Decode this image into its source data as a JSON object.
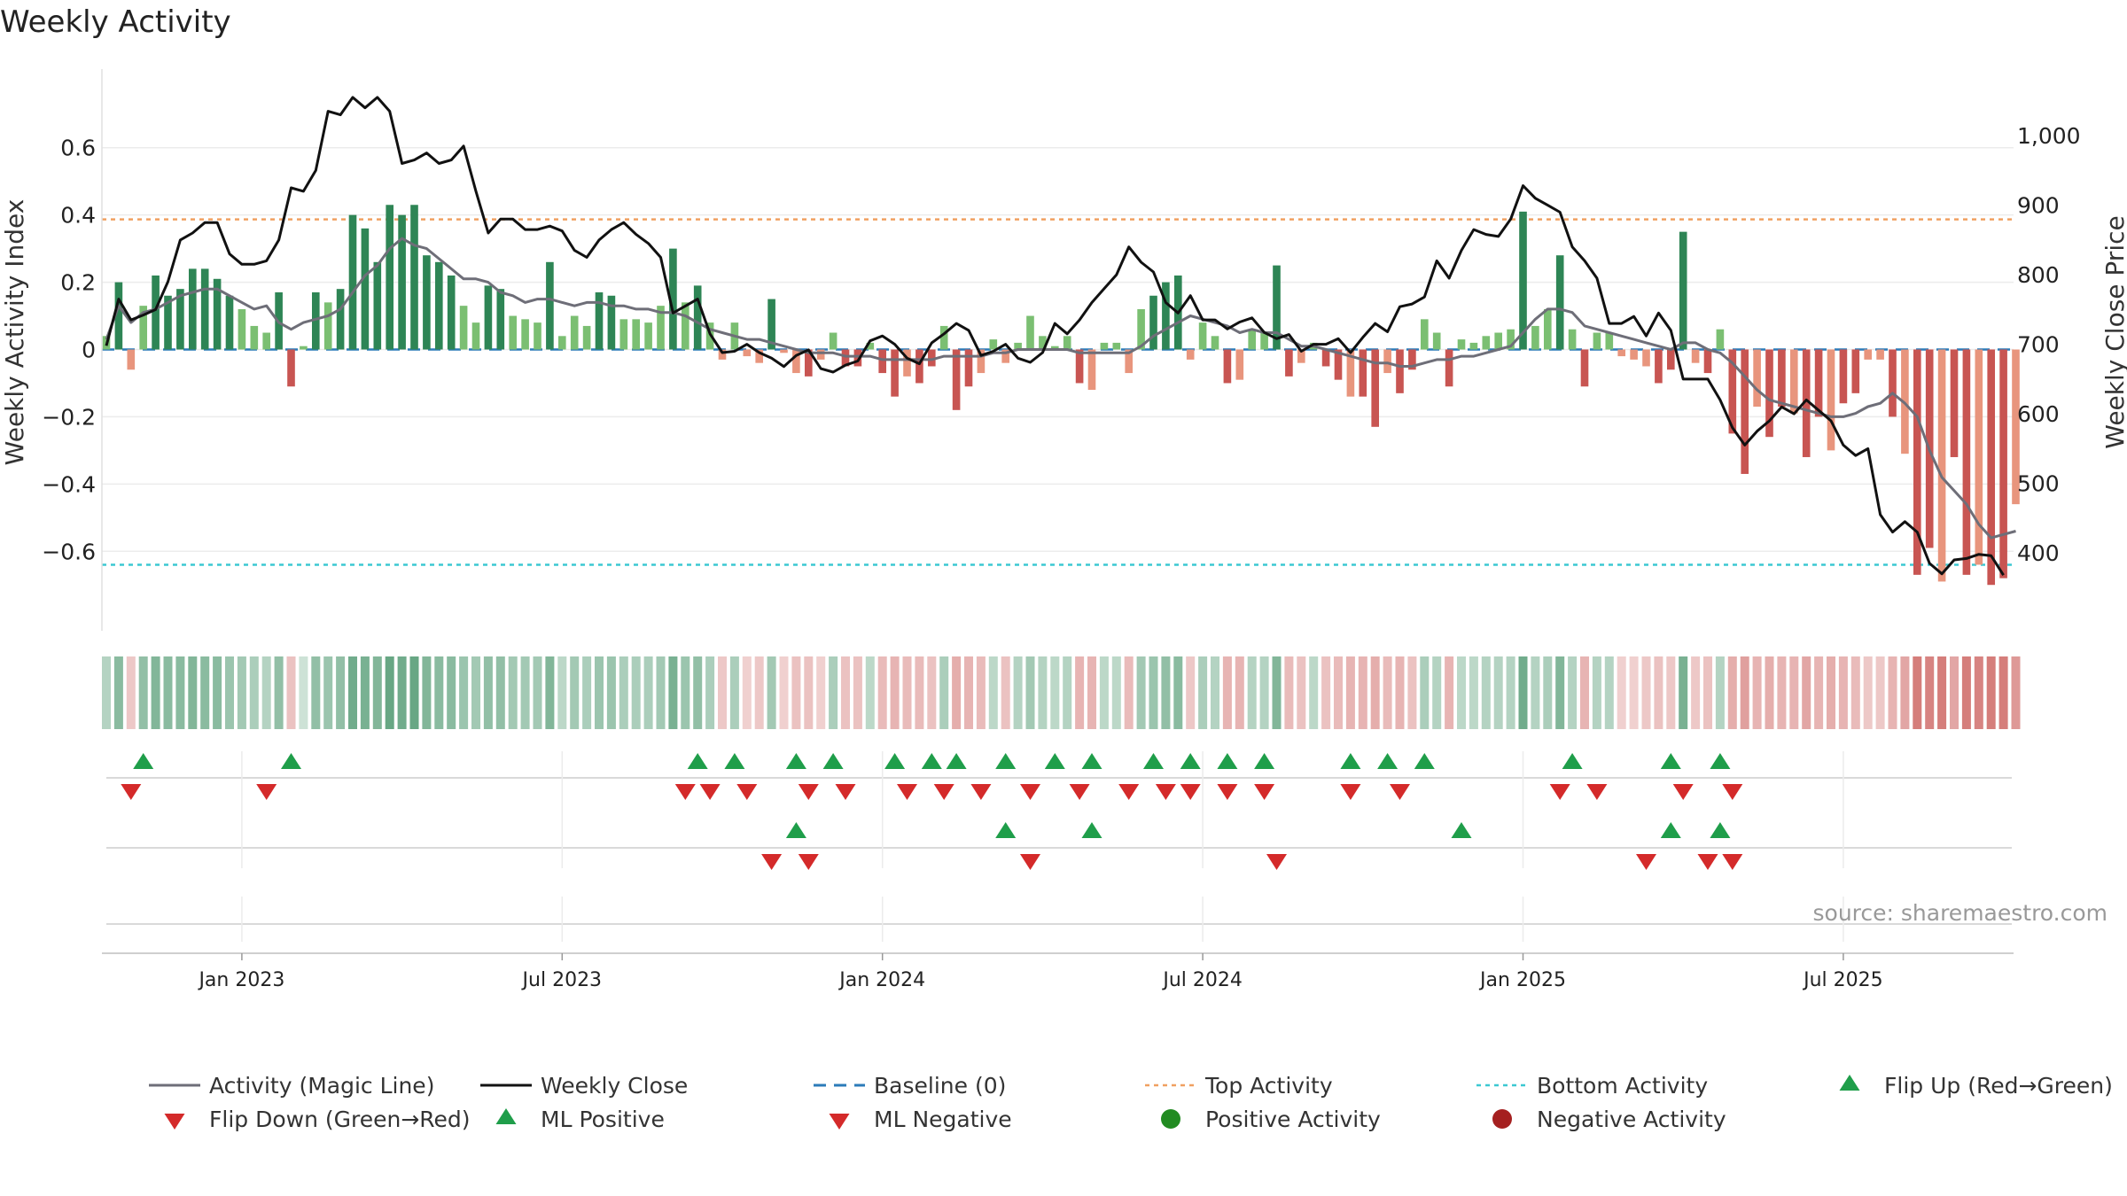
{
  "chart_data": {
    "type": "bar",
    "title": "Weekly Activity",
    "ylabel": "Weekly Activity Index",
    "y2label": "Weekly Close Price",
    "source": "source: sharemaestro.com",
    "ylim": [
      -0.76,
      0.76
    ],
    "y2lim": [
      325,
      1060
    ],
    "yticks": [
      {
        "v": 0.6,
        "label": "0.6"
      },
      {
        "v": 0.4,
        "label": "0.4"
      },
      {
        "v": 0.2,
        "label": "0.2"
      },
      {
        "v": 0,
        "label": "0"
      },
      {
        "v": -0.2,
        "label": "−0.2"
      },
      {
        "v": -0.4,
        "label": "−0.4"
      },
      {
        "v": -0.6,
        "label": "−0.6"
      }
    ],
    "y2ticks": [
      {
        "v": 1000,
        "label": "1,000"
      },
      {
        "v": 900,
        "label": "900"
      },
      {
        "v": 800,
        "label": "800"
      },
      {
        "v": 700,
        "label": "700"
      },
      {
        "v": 600,
        "label": "600"
      },
      {
        "v": 500,
        "label": "500"
      },
      {
        "v": 400,
        "label": "400"
      }
    ],
    "xticks": [
      {
        "week": 11,
        "label": "Jan 2023"
      },
      {
        "week": 37,
        "label": "Jul 2023"
      },
      {
        "week": 63,
        "label": "Jan 2024"
      },
      {
        "week": 89,
        "label": "Jul 2024"
      },
      {
        "week": 115,
        "label": "Jan 2025"
      },
      {
        "week": 141,
        "label": "Jul 2025"
      }
    ],
    "top_activity": 0.387,
    "bottom_activity": -0.64,
    "weeks": 156,
    "activity": [
      0.04,
      0.2,
      -0.06,
      0.13,
      0.22,
      0.16,
      0.18,
      0.24,
      0.24,
      0.21,
      0.16,
      0.12,
      0.07,
      0.05,
      0.17,
      -0.11,
      0.01,
      0.17,
      0.14,
      0.18,
      0.4,
      0.36,
      0.26,
      0.43,
      0.4,
      0.43,
      0.28,
      0.26,
      0.22,
      0.13,
      0.08,
      0.19,
      0.18,
      0.1,
      0.09,
      0.08,
      0.26,
      0.04,
      0.1,
      0.07,
      0.17,
      0.16,
      0.09,
      0.09,
      0.08,
      0.13,
      0.3,
      0.14,
      0.19,
      0.08,
      -0.03,
      0.08,
      -0.02,
      -0.04,
      0.15,
      -0.01,
      -0.07,
      -0.08,
      -0.03,
      0.05,
      -0.05,
      -0.05,
      0.02,
      -0.07,
      -0.14,
      -0.08,
      -0.1,
      -0.05,
      0.07,
      -0.18,
      -0.11,
      -0.07,
      0.03,
      -0.04,
      0.02,
      0.1,
      0.04,
      0.01,
      0.04,
      -0.1,
      -0.12,
      0.02,
      0.02,
      -0.07,
      0.12,
      0.16,
      0.2,
      0.22,
      -0.03,
      0.08,
      0.04,
      -0.1,
      -0.09,
      0.06,
      0.05,
      0.25,
      -0.08,
      -0.04,
      0.02,
      -0.05,
      -0.09,
      -0.14,
      -0.14,
      -0.23,
      -0.07,
      -0.13,
      -0.06,
      0.09,
      0.05,
      -0.11,
      0.03,
      0.02,
      0.04,
      0.05,
      0.06,
      0.41,
      0.07,
      0.12,
      0.28,
      0.06,
      -0.11,
      0.05,
      0.05,
      -0.02,
      -0.03,
      -0.05,
      -0.1,
      -0.06,
      0.35,
      -0.04,
      -0.07,
      0.06,
      -0.25,
      -0.37,
      -0.17,
      -0.26,
      -0.17,
      -0.19,
      -0.32,
      -0.2,
      -0.3,
      -0.16,
      -0.13,
      -0.03,
      -0.03,
      -0.2,
      -0.31,
      -0.67,
      -0.59,
      -0.69,
      -0.32,
      -0.67,
      -0.64,
      -0.7,
      -0.68,
      -0.46
    ],
    "magic_line": [
      0.03,
      0.13,
      0.08,
      0.11,
      0.12,
      0.14,
      0.16,
      0.17,
      0.18,
      0.18,
      0.16,
      0.14,
      0.12,
      0.13,
      0.08,
      0.06,
      0.08,
      0.09,
      0.1,
      0.12,
      0.17,
      0.22,
      0.25,
      0.3,
      0.33,
      0.31,
      0.3,
      0.27,
      0.24,
      0.21,
      0.21,
      0.2,
      0.17,
      0.16,
      0.14,
      0.15,
      0.15,
      0.14,
      0.13,
      0.14,
      0.14,
      0.13,
      0.13,
      0.12,
      0.12,
      0.11,
      0.11,
      0.1,
      0.08,
      0.06,
      0.05,
      0.04,
      0.03,
      0.03,
      0.02,
      0.01,
      0.0,
      -0.01,
      -0.01,
      -0.01,
      -0.02,
      -0.02,
      -0.02,
      -0.03,
      -0.03,
      -0.03,
      -0.03,
      -0.03,
      -0.02,
      -0.02,
      -0.02,
      -0.02,
      -0.01,
      -0.01,
      0.0,
      0.0,
      0.0,
      0.0,
      0.0,
      -0.01,
      -0.01,
      -0.01,
      -0.01,
      -0.01,
      0.01,
      0.04,
      0.06,
      0.08,
      0.1,
      0.09,
      0.08,
      0.07,
      0.05,
      0.06,
      0.05,
      0.05,
      0.03,
      0.01,
      0.01,
      0.0,
      -0.01,
      -0.02,
      -0.03,
      -0.04,
      -0.04,
      -0.05,
      -0.05,
      -0.04,
      -0.03,
      -0.03,
      -0.02,
      -0.02,
      -0.01,
      0.0,
      0.01,
      0.05,
      0.09,
      0.12,
      0.12,
      0.11,
      0.07,
      0.06,
      0.05,
      0.04,
      0.03,
      0.02,
      0.01,
      0.0,
      0.02,
      0.02,
      0.0,
      -0.01,
      -0.04,
      -0.08,
      -0.12,
      -0.15,
      -0.16,
      -0.17,
      -0.18,
      -0.19,
      -0.2,
      -0.2,
      -0.19,
      -0.17,
      -0.16,
      -0.13,
      -0.16,
      -0.2,
      -0.3,
      -0.38,
      -0.42,
      -0.46,
      -0.52,
      -0.56,
      -0.55,
      -0.54
    ],
    "weekly_close": [
      698,
      765,
      735,
      742,
      750,
      790,
      850,
      860,
      875,
      875,
      830,
      815,
      815,
      820,
      850,
      925,
      920,
      950,
      1035,
      1030,
      1055,
      1040,
      1055,
      1035,
      960,
      965,
      975,
      960,
      965,
      985,
      920,
      860,
      880,
      880,
      865,
      865,
      870,
      863,
      835,
      825,
      850,
      865,
      875,
      858,
      845,
      825,
      745,
      755,
      765,
      715,
      688,
      690,
      700,
      688,
      680,
      668,
      684,
      692,
      665,
      660,
      670,
      676,
      705,
      712,
      700,
      680,
      672,
      702,
      715,
      730,
      720,
      684,
      690,
      700,
      680,
      674,
      688,
      730,
      715,
      735,
      760,
      780,
      800,
      840,
      818,
      804,
      760,
      745,
      770,
      735,
      735,
      722,
      732,
      738,
      717,
      708,
      714,
      690,
      700,
      700,
      708,
      688,
      710,
      730,
      718,
      754,
      758,
      768,
      820,
      795,
      835,
      865,
      858,
      855,
      880,
      928,
      910,
      900,
      890,
      840,
      820,
      795,
      730,
      730,
      740,
      712,
      745,
      720,
      650,
      650,
      650,
      620,
      580,
      555,
      575,
      590,
      610,
      600,
      620,
      605,
      590,
      555,
      540,
      550,
      455,
      430,
      445,
      430,
      385,
      370,
      390,
      392,
      398,
      396,
      368
    ],
    "bar_strip_levels": [
      0.45,
      0.7,
      0.4,
      0.65,
      0.75,
      0.7,
      0.7,
      0.75,
      0.7,
      0.7,
      0.6,
      0.55,
      0.5,
      0.45,
      0.65,
      0.45,
      0.3,
      0.65,
      0.6,
      0.65,
      0.85,
      0.8,
      0.75,
      0.9,
      0.85,
      0.9,
      0.75,
      0.7,
      0.7,
      0.6,
      0.55,
      0.65,
      0.65,
      0.55,
      0.55,
      0.55,
      0.75,
      0.4,
      0.55,
      0.5,
      0.6,
      0.6,
      0.5,
      0.5,
      0.5,
      0.55,
      0.8,
      0.6,
      0.65,
      0.5,
      0.4,
      0.5,
      0.35,
      0.4,
      0.55,
      0.35,
      0.45,
      0.45,
      0.35,
      0.5,
      0.45,
      0.45,
      0.4,
      0.5,
      0.55,
      0.5,
      0.5,
      0.45,
      0.5,
      0.6,
      0.55,
      0.5,
      0.4,
      0.45,
      0.45,
      0.55,
      0.45,
      0.4,
      0.45,
      0.55,
      0.55,
      0.4,
      0.4,
      0.5,
      0.55,
      0.6,
      0.65,
      0.7,
      0.4,
      0.5,
      0.45,
      0.55,
      0.55,
      0.45,
      0.45,
      0.75,
      0.5,
      0.45,
      0.4,
      0.45,
      0.5,
      0.55,
      0.55,
      0.6,
      0.5,
      0.55,
      0.45,
      0.5,
      0.45,
      0.55,
      0.4,
      0.4,
      0.45,
      0.45,
      0.45,
      0.85,
      0.45,
      0.5,
      0.75,
      0.45,
      0.55,
      0.45,
      0.45,
      0.35,
      0.35,
      0.4,
      0.45,
      0.4,
      0.8,
      0.4,
      0.45,
      0.45,
      0.6,
      0.7,
      0.55,
      0.6,
      0.55,
      0.55,
      0.65,
      0.55,
      0.6,
      0.55,
      0.5,
      0.4,
      0.4,
      0.55,
      0.65,
      0.95,
      0.9,
      0.95,
      0.65,
      0.95,
      0.9,
      0.95,
      0.95,
      0.75
    ],
    "flip_up_weeks": [
      3,
      15,
      48,
      51,
      56,
      59,
      64,
      67,
      69,
      73,
      77,
      80,
      85,
      88,
      91,
      94,
      101,
      104,
      107,
      119,
      127,
      131
    ],
    "flip_down_weeks": [
      2,
      13,
      47,
      49,
      52,
      57,
      60,
      65,
      68,
      71,
      75,
      79,
      83,
      86,
      88,
      91,
      94,
      101,
      105,
      118,
      121,
      128,
      132
    ],
    "ml_positive_weeks": [
      56,
      73,
      80,
      110,
      127,
      131
    ],
    "ml_negative_weeks": [
      54,
      57,
      75,
      95,
      125,
      130,
      132
    ],
    "colors": {
      "strong_green": "#2e8555",
      "light_green": "#7bbf72",
      "strong_red": "#c85552",
      "light_red": "#e8957d",
      "magic_line": "#6e6e78",
      "weekly_close": "#111111",
      "baseline": "#2b7bb9",
      "top_activity": "#f0a060",
      "bottom_activity": "#3cc8d2",
      "marker_green": "#1f9e4a",
      "marker_red": "#d42a2a",
      "pos_dot": "#228b22",
      "neg_dot": "#a52020"
    },
    "legend": [
      {
        "key": "magic",
        "label": "Activity (Magic Line)"
      },
      {
        "key": "close",
        "label": "Weekly Close"
      },
      {
        "key": "baseline",
        "label": "Baseline (0)"
      },
      {
        "key": "top",
        "label": "Top Activity"
      },
      {
        "key": "bottom",
        "label": "Bottom Activity"
      },
      {
        "key": "flipup",
        "label": "Flip Up (Red→Green)"
      },
      {
        "key": "flipdown",
        "label": "Flip Down (Green→Red)"
      },
      {
        "key": "mlpos",
        "label": "ML Positive"
      },
      {
        "key": "mlneg",
        "label": "ML Negative"
      },
      {
        "key": "posact",
        "label": "Positive Activity"
      },
      {
        "key": "negact",
        "label": "Negative Activity"
      }
    ]
  }
}
